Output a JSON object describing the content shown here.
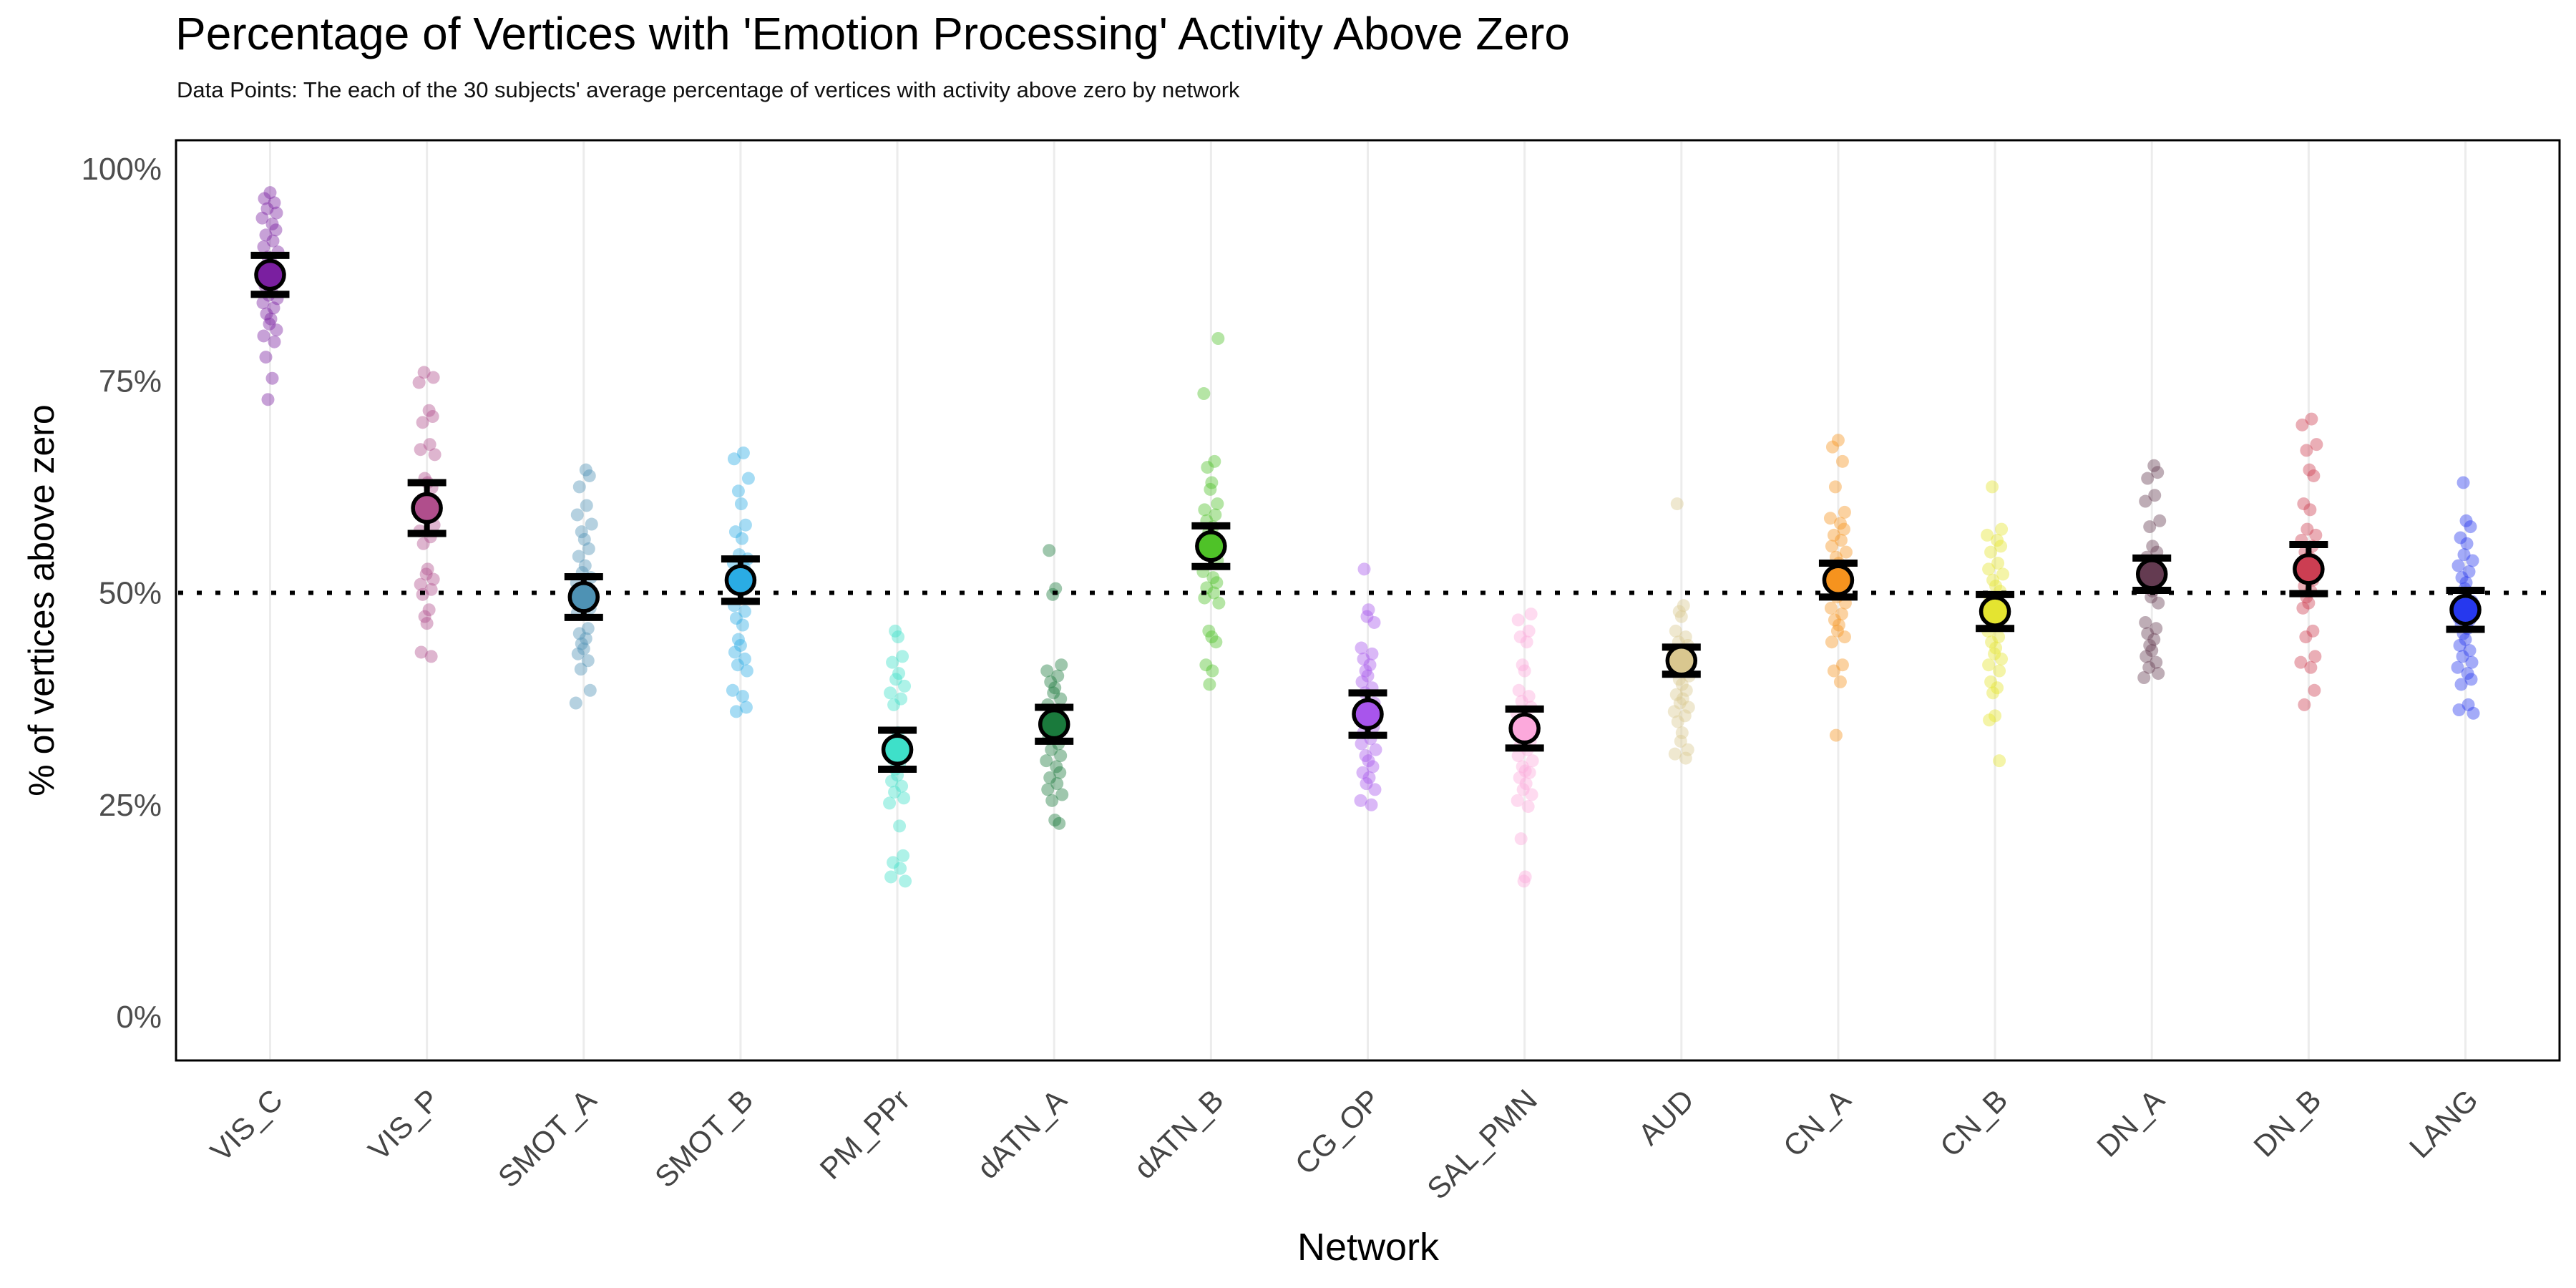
{
  "header": {
    "title": "Percentage of Vertices with 'Emotion Processing' Activity Above Zero",
    "subtitle": "Data Points: The each of the 30 subjects' average percentage of vertices with activity above zero by network"
  },
  "chart_data": {
    "type": "scatter",
    "variant": "jittered strip plot per network with group mean dot and SEM error bar",
    "title": "Percentage of Vertices with 'Emotion Processing' Activity Above Zero",
    "subtitle": "Data Points: The each of the 30 subjects' average percentage of vertices with activity above zero by network",
    "xlabel": "Network",
    "ylabel": "% of vertices above zero",
    "legend": "none",
    "n_subjects_per_network": 30,
    "y_axis": {
      "ticks": [
        0,
        25,
        50,
        75,
        100
      ],
      "tick_labels": [
        "0%",
        "25%",
        "50%",
        "75%",
        "100%"
      ],
      "range": [
        -5.2,
        103.5
      ],
      "horizontal_grid": false
    },
    "x_axis": {
      "label_angle_deg": 45,
      "vertical_gridlines": true,
      "gridline_color": "#ececec"
    },
    "reference_line": {
      "y": 50,
      "style": "dotted",
      "color": "#000000"
    },
    "text_colors": {
      "title": "#000000",
      "axis_titles": "#000000",
      "tick_labels": "#4d4d4d"
    },
    "categories": [
      "VIS_C",
      "VIS_P",
      "SMOT_A",
      "SMOT_B",
      "PM_PPr",
      "dATN_A",
      "dATN_B",
      "CG_OP",
      "SAL_PMN",
      "AUD",
      "CN_A",
      "CN_B",
      "DN_A",
      "DN_B",
      "LANG"
    ],
    "series": [
      {
        "network": "VIS_C",
        "color": "#7A1FA0",
        "mean": 87.5,
        "sem": 2.3,
        "points": [
          97.2,
          96.5,
          96.0,
          95.3,
          94.8,
          94.2,
          93.5,
          92.8,
          92.2,
          91.5,
          90.8,
          90.2,
          89.6,
          89.0,
          88.4,
          86.2,
          85.6,
          85.1,
          84.7,
          84.2,
          83.6,
          82.9,
          82.3,
          81.7,
          81.0,
          80.3,
          79.6,
          77.8,
          75.3,
          72.8
        ]
      },
      {
        "network": "VIS_P",
        "color": "#B04E8C",
        "mean": 60.0,
        "sem": 3.0,
        "points": [
          76.0,
          75.4,
          74.8,
          71.5,
          70.8,
          70.1,
          67.5,
          66.9,
          66.3,
          63.5,
          63.0,
          62.4,
          61.0,
          60.2,
          59.4,
          58.0,
          57.3,
          56.6,
          55.8,
          52.8,
          52.2,
          51.6,
          51.0,
          50.4,
          49.8,
          48.0,
          47.2,
          46.4,
          43.0,
          42.5
        ]
      },
      {
        "network": "SMOT_A",
        "color": "#4E92B4",
        "mean": 49.5,
        "sem": 2.4,
        "points": [
          64.5,
          63.8,
          62.5,
          60.3,
          59.2,
          58.1,
          57.2,
          56.3,
          55.2,
          54.3,
          53.2,
          52.4,
          51.8,
          51.2,
          50.6,
          50.0,
          49.4,
          48.8,
          48.2,
          47.6,
          45.8,
          45.2,
          44.6,
          44.0,
          43.4,
          42.8,
          42.0,
          41.0,
          38.5,
          37.0
        ]
      },
      {
        "network": "SMOT_B",
        "color": "#2AACE4",
        "mean": 51.5,
        "sem": 2.5,
        "points": [
          66.5,
          65.8,
          63.5,
          62.0,
          60.5,
          58.0,
          57.2,
          56.4,
          54.5,
          54.0,
          53.5,
          53.0,
          52.5,
          52.0,
          51.5,
          51.0,
          48.5,
          47.8,
          47.0,
          46.2,
          44.5,
          43.8,
          43.0,
          42.2,
          41.5,
          40.8,
          38.5,
          37.8,
          36.5,
          36.0
        ]
      },
      {
        "network": "PM_PPr",
        "color": "#3EE0C9",
        "mean": 31.5,
        "sem": 2.3,
        "points": [
          45.5,
          44.8,
          42.5,
          41.8,
          40.5,
          39.8,
          39.0,
          38.2,
          37.5,
          36.8,
          33.5,
          32.8,
          32.2,
          31.6,
          31.0,
          30.4,
          29.8,
          29.2,
          28.5,
          27.8,
          27.2,
          26.5,
          25.8,
          25.2,
          22.5,
          19.0,
          18.2,
          17.5,
          16.5,
          16.0
        ]
      },
      {
        "network": "dATN_A",
        "color": "#1A7A3C",
        "mean": 34.5,
        "sem": 2.0,
        "points": [
          55.0,
          50.5,
          49.8,
          41.5,
          40.8,
          40.2,
          39.5,
          38.8,
          38.2,
          37.5,
          36.8,
          36.2,
          35.5,
          34.8,
          34.2,
          33.5,
          32.8,
          32.2,
          31.5,
          30.8,
          30.2,
          29.5,
          28.8,
          28.2,
          27.5,
          26.8,
          26.2,
          25.5,
          23.2,
          22.8
        ]
      },
      {
        "network": "dATN_B",
        "color": "#4FC228",
        "mean": 55.5,
        "sem": 2.4,
        "points": [
          80.0,
          73.5,
          65.5,
          64.8,
          63.0,
          62.2,
          60.5,
          59.8,
          59.2,
          58.5,
          57.8,
          57.2,
          56.5,
          55.8,
          55.2,
          54.5,
          53.8,
          52.5,
          51.8,
          51.2,
          50.6,
          50.0,
          49.4,
          48.8,
          45.5,
          44.8,
          44.2,
          41.5,
          40.8,
          39.2
        ]
      },
      {
        "network": "CG_OP",
        "color": "#A855EC",
        "mean": 35.7,
        "sem": 2.5,
        "points": [
          52.8,
          48.0,
          47.2,
          46.5,
          43.5,
          42.8,
          42.2,
          41.5,
          40.8,
          40.2,
          39.5,
          38.8,
          38.2,
          37.0,
          35.5,
          34.8,
          34.2,
          33.5,
          32.8,
          32.2,
          31.5,
          30.8,
          30.2,
          29.5,
          28.8,
          28.2,
          27.5,
          26.8,
          25.5,
          25.0
        ]
      },
      {
        "network": "SAL_PMN",
        "color": "#FCA9DC",
        "mean": 34.0,
        "sem": 2.3,
        "points": [
          47.5,
          46.8,
          45.5,
          44.8,
          44.2,
          41.5,
          40.8,
          38.5,
          37.8,
          37.2,
          36.5,
          35.8,
          33.0,
          32.5,
          32.0,
          31.5,
          30.8,
          30.2,
          29.5,
          29.0,
          28.8,
          28.2,
          27.5,
          26.8,
          26.2,
          25.5,
          24.8,
          21.0,
          16.5,
          16.0
        ]
      },
      {
        "network": "AUD",
        "color": "#D9C78F",
        "mean": 42.0,
        "sem": 1.6,
        "points": [
          60.5,
          48.5,
          47.8,
          47.2,
          45.5,
          44.8,
          44.2,
          43.8,
          43.2,
          42.8,
          42.2,
          41.8,
          41.2,
          40.8,
          40.2,
          39.8,
          39.2,
          38.5,
          38.0,
          37.5,
          37.0,
          36.5,
          36.0,
          35.5,
          34.8,
          33.5,
          32.5,
          31.5,
          31.0,
          30.5
        ]
      },
      {
        "network": "CN_A",
        "color": "#F6931E",
        "mean": 51.5,
        "sem": 2.0,
        "points": [
          68.0,
          67.2,
          65.5,
          62.5,
          59.5,
          58.8,
          58.2,
          57.5,
          56.8,
          56.2,
          55.5,
          54.8,
          54.2,
          53.5,
          52.8,
          52.2,
          50.0,
          49.5,
          48.8,
          48.2,
          47.5,
          46.8,
          46.2,
          45.5,
          44.8,
          44.2,
          41.5,
          40.8,
          39.5,
          33.2
        ]
      },
      {
        "network": "CN_B",
        "color": "#E4E430",
        "mean": 47.8,
        "sem": 2.0,
        "points": [
          62.5,
          57.5,
          56.8,
          56.2,
          55.5,
          54.8,
          53.5,
          52.8,
          52.2,
          51.5,
          50.8,
          50.2,
          49.5,
          48.8,
          48.2,
          47.0,
          45.5,
          44.8,
          44.2,
          43.5,
          42.8,
          42.2,
          41.5,
          40.8,
          39.5,
          38.8,
          38.2,
          35.5,
          35.0,
          30.2
        ]
      },
      {
        "network": "DN_A",
        "color": "#643B51",
        "mean": 52.2,
        "sem": 1.9,
        "points": [
          65.0,
          64.2,
          63.5,
          61.5,
          60.8,
          58.5,
          57.8,
          55.5,
          54.8,
          54.2,
          53.5,
          53.0,
          52.8,
          52.2,
          51.5,
          50.8,
          50.2,
          49.5,
          48.8,
          46.5,
          45.8,
          45.2,
          44.5,
          43.8,
          43.2,
          42.5,
          41.8,
          41.2,
          40.5,
          40.0
        ]
      },
      {
        "network": "DN_B",
        "color": "#CC3E52",
        "mean": 52.8,
        "sem": 2.9,
        "points": [
          70.5,
          69.8,
          67.5,
          66.8,
          64.5,
          63.8,
          60.5,
          59.8,
          57.5,
          56.8,
          56.2,
          55.5,
          54.8,
          54.2,
          53.5,
          52.8,
          52.2,
          51.5,
          50.8,
          50.2,
          49.5,
          48.8,
          48.2,
          45.5,
          44.8,
          42.5,
          41.8,
          41.2,
          38.5,
          36.8
        ]
      },
      {
        "network": "LANG",
        "color": "#2638EE",
        "mean": 48.0,
        "sem": 2.3,
        "points": [
          63.0,
          58.5,
          57.8,
          56.5,
          55.8,
          54.5,
          53.8,
          53.2,
          52.5,
          51.8,
          51.2,
          50.5,
          49.0,
          47.0,
          46.8,
          46.2,
          45.8,
          45.2,
          44.5,
          43.8,
          43.2,
          42.5,
          41.8,
          41.2,
          40.5,
          39.8,
          39.2,
          36.8,
          36.2,
          35.8
        ]
      }
    ]
  }
}
